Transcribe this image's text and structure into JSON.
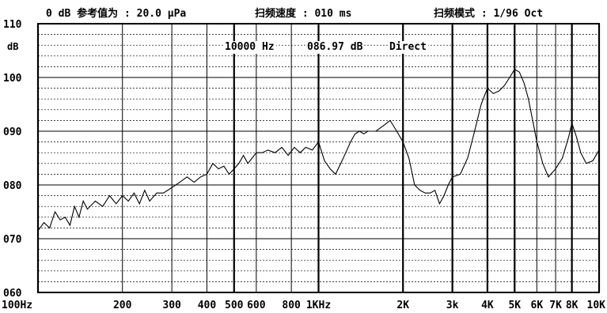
{
  "header": {
    "reference": "0 dB 参考值为 : 20.0 μPa",
    "sweep_speed": "扫频速度 : 010 ms",
    "sweep_mode": "扫频模式 : 1/96 Oct"
  },
  "readout": {
    "frequency": "10000 Hz",
    "level": "086.97 dB",
    "mode": "Direct"
  },
  "chart_data": {
    "type": "line",
    "title": "",
    "xlabel": "",
    "ylabel": "dB",
    "xscale": "log",
    "xlim": [
      100,
      10000
    ],
    "ylim": [
      60,
      110
    ],
    "grid": true,
    "y_ticks": [
      {
        "value": 110,
        "label": "110"
      },
      {
        "value": 100,
        "label": "100"
      },
      {
        "value": 90,
        "label": "090"
      },
      {
        "value": 80,
        "label": "080"
      },
      {
        "value": 70,
        "label": "070"
      },
      {
        "value": 60,
        "label": "060"
      }
    ],
    "x_ticks": [
      {
        "value": 100,
        "label": "100Hz"
      },
      {
        "value": 200,
        "label": "200"
      },
      {
        "value": 300,
        "label": "300"
      },
      {
        "value": 400,
        "label": "400"
      },
      {
        "value": 500,
        "label": "500"
      },
      {
        "value": 600,
        "label": "600"
      },
      {
        "value": 800,
        "label": "800"
      },
      {
        "value": 1000,
        "label": "1KHz"
      },
      {
        "value": 2000,
        "label": "2K"
      },
      {
        "value": 3000,
        "label": "3k"
      },
      {
        "value": 4000,
        "label": "4K"
      },
      {
        "value": 5000,
        "label": "5K"
      },
      {
        "value": 6000,
        "label": "6K"
      },
      {
        "value": 7000,
        "label": "7K"
      },
      {
        "value": 8000,
        "label": "8K"
      },
      {
        "value": 10000,
        "label": "10K"
      }
    ],
    "series": [
      {
        "x": [
          100,
          105,
          110,
          115,
          120,
          125,
          130,
          135,
          140,
          145,
          150,
          160,
          170,
          180,
          190,
          200,
          210,
          220,
          230,
          240,
          250,
          265,
          280,
          300,
          320,
          340,
          360,
          380,
          400,
          420,
          440,
          460,
          480,
          500,
          520,
          540,
          560,
          580,
          600,
          630,
          660,
          700,
          740,
          780,
          820,
          860,
          900,
          950,
          1000,
          1050,
          1100,
          1150,
          1200,
          1250,
          1300,
          1350,
          1400,
          1450,
          1500,
          1600,
          1700,
          1800,
          1900,
          2000,
          2100,
          2200,
          2300,
          2400,
          2500,
          2600,
          2700,
          2800,
          2900,
          3000,
          3200,
          3400,
          3600,
          3800,
          4000,
          4200,
          4400,
          4600,
          4800,
          5000,
          5200,
          5400,
          5600,
          5800,
          6000,
          6300,
          6600,
          7000,
          7400,
          7800,
          8000,
          8300,
          8600,
          9000,
          9500,
          10000
        ],
        "y": [
          71.5,
          73,
          72,
          75,
          73.5,
          74,
          72.5,
          76,
          74,
          77,
          75.5,
          77,
          76,
          78,
          76.5,
          78,
          77,
          78.5,
          76.5,
          79,
          77,
          78.5,
          78.5,
          79.5,
          80.5,
          81.5,
          80.5,
          81.5,
          82,
          84,
          83,
          83.5,
          82,
          83,
          84,
          85.5,
          84,
          85,
          86,
          86,
          86.5,
          86,
          87,
          85.5,
          87,
          86,
          87,
          86.5,
          88,
          84.5,
          83,
          82,
          84,
          86,
          88,
          89.5,
          90,
          89.5,
          90,
          90,
          91,
          92,
          90,
          88,
          85,
          80,
          79,
          78.5,
          78.5,
          79,
          76.5,
          78,
          80,
          81.5,
          82,
          85,
          90,
          95,
          98,
          97,
          97.5,
          98.5,
          100,
          101.5,
          101,
          99,
          96,
          92,
          88,
          84,
          81.5,
          83,
          85,
          89,
          91.5,
          89,
          86,
          84,
          84.5,
          86.5
        ]
      }
    ]
  }
}
